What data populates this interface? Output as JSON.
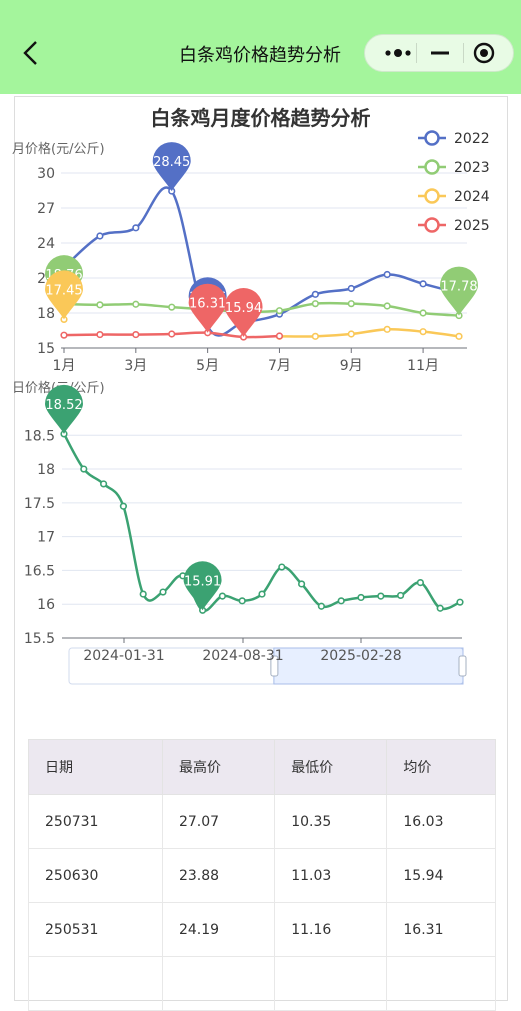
{
  "nav": {
    "title": "白条鸡价格趋势分析"
  },
  "chart1": {
    "title": "白条鸡月度价格趋势分析",
    "ylabel": "月价格(元/公斤)"
  },
  "chart2": {
    "ylabel": "日价格(元/公斤)"
  },
  "colors": {
    "c2022": "#5470c6",
    "c2023": "#91cc75",
    "c2024": "#fac858",
    "c2025": "#ee6666",
    "daily": "#3ba272"
  },
  "chart_data": [
    {
      "type": "line",
      "title": "白条鸡月度价格趋势分析",
      "ylabel": "月价格(元/公斤)",
      "categories": [
        "1月",
        "2月",
        "3月",
        "4月",
        "5月",
        "6月",
        "7月",
        "8月",
        "9月",
        "10月",
        "11月",
        "12月"
      ],
      "x_tick_labels": [
        "1月",
        "3月",
        "5月",
        "7月",
        "9月",
        "11月"
      ],
      "y_ticks": [
        15,
        18,
        21,
        24,
        27,
        30
      ],
      "ylim": [
        15,
        31.5
      ],
      "legend_position": "top-right",
      "series": [
        {
          "name": "2022",
          "color": "#5470c6",
          "values": [
            21.9,
            24.6,
            25.3,
            28.45,
            16.86,
            17.2,
            17.9,
            19.6,
            20.1,
            21.3,
            20.5,
            19.7
          ],
          "pins": [
            {
              "index": 3,
              "label": "28.45"
            },
            {
              "index": 4,
              "label": "16.86"
            }
          ]
        },
        {
          "name": "2023",
          "color": "#91cc75",
          "values": [
            18.76,
            18.7,
            18.75,
            18.5,
            18.3,
            18.1,
            18.2,
            18.8,
            18.8,
            18.6,
            18.0,
            17.78
          ],
          "pins": [
            {
              "index": 0,
              "label": "18.76"
            },
            {
              "index": 11,
              "label": "17.78"
            }
          ]
        },
        {
          "name": "2024",
          "color": "#fac858",
          "values": [
            17.45,
            null,
            null,
            null,
            null,
            null,
            16.0,
            16.0,
            16.2,
            16.6,
            16.4,
            16.0
          ],
          "pins": [
            {
              "index": 0,
              "label": "17.45"
            }
          ]
        },
        {
          "name": "2025",
          "color": "#ee6666",
          "values": [
            16.1,
            16.15,
            16.15,
            16.2,
            16.31,
            15.94,
            16.03,
            null,
            null,
            null,
            null,
            null
          ],
          "pins": [
            {
              "index": 4,
              "label": "16.31"
            },
            {
              "index": 5,
              "label": "15.94"
            }
          ]
        }
      ]
    },
    {
      "type": "line",
      "ylabel": "日价格(元/公斤)",
      "x_tick_labels": [
        "2024-01-31",
        "2024-08-31",
        "2025-02-28"
      ],
      "y_ticks": [
        15.5,
        16,
        16.5,
        17,
        17.5,
        18,
        18.5
      ],
      "ylim": [
        15.5,
        18.8
      ],
      "series": [
        {
          "name": "",
          "color": "#3ba272",
          "values": [
            18.52,
            18.0,
            17.78,
            17.45,
            16.15,
            16.18,
            16.42,
            15.91,
            16.12,
            16.05,
            16.15,
            16.55,
            16.3,
            15.97,
            16.05,
            16.1,
            16.12,
            16.13,
            16.32,
            15.94,
            16.03
          ],
          "pins": [
            {
              "index": 0,
              "label": "18.52"
            },
            {
              "index": 7,
              "label": "15.91"
            }
          ]
        }
      ],
      "data_zoom": {
        "start_pct": 52,
        "end_pct": 100
      }
    }
  ],
  "table": {
    "headers": [
      "日期",
      "最高价",
      "最低价",
      "均价"
    ],
    "rows": [
      [
        "250731",
        "27.07",
        "10.35",
        "16.03"
      ],
      [
        "250630",
        "23.88",
        "11.03",
        "15.94"
      ],
      [
        "250531",
        "24.19",
        "11.16",
        "16.31"
      ],
      [
        "",
        "",
        "",
        ""
      ]
    ]
  }
}
